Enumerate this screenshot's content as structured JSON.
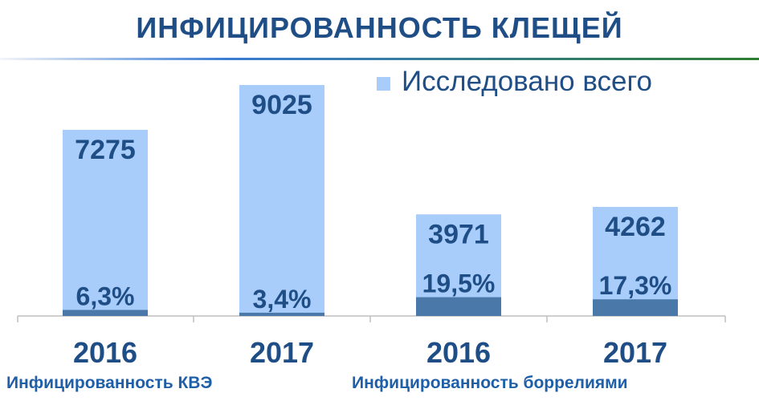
{
  "title": "ИНФИЦИРОВАННОСТЬ КЛЕЩЕЙ",
  "groups": [
    {
      "label": "Инфицированность КВЭ"
    },
    {
      "label": "Инфицированность боррелиями"
    }
  ],
  "chart_data": {
    "type": "bar",
    "categories": [
      "2016",
      "2017",
      "2016",
      "2017"
    ],
    "series": [
      {
        "name": "Исследовано всего",
        "values": [
          7275,
          9025,
          3971,
          4262
        ],
        "labels": [
          "7275",
          "9025",
          "3971",
          "4262"
        ],
        "color": "#a9cdfa"
      },
      {
        "name": "",
        "values": [
          6.3,
          3.4,
          19.5,
          17.3
        ],
        "labels": [
          "6,3%",
          "3,4%",
          "19,5%",
          "17,3%"
        ],
        "color": "#4a78a8"
      }
    ],
    "legend": {
      "position": "top-right"
    },
    "grid": false,
    "title": "",
    "xlabel": "",
    "ylabel": "",
    "ylim": [
      0,
      10000
    ]
  }
}
